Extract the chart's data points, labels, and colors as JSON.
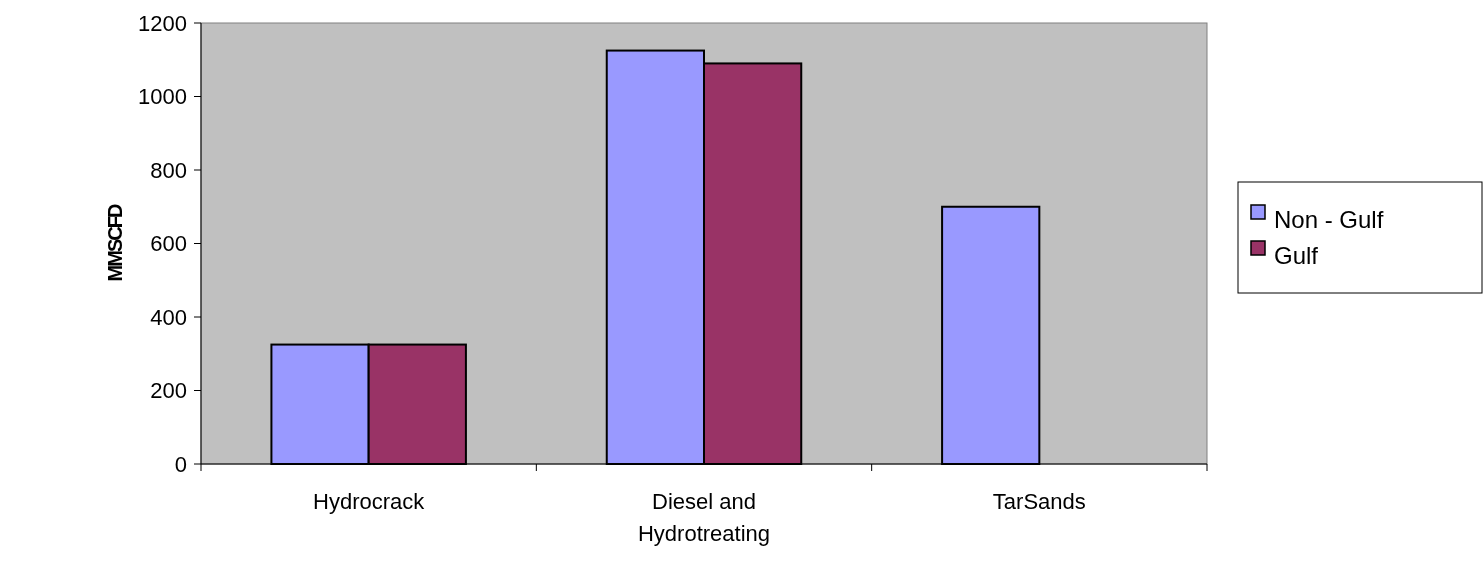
{
  "chart_data": {
    "type": "bar",
    "ylabel": "MMSCFD",
    "categories": [
      "Hydrocrack",
      "Diesel and Hydrotreating",
      "TarSands"
    ],
    "series": [
      {
        "name": "Non - Gulf",
        "color": "#9999ff",
        "values": [
          325,
          1125,
          700
        ]
      },
      {
        "name": "Gulf",
        "color": "#993366",
        "values": [
          325,
          1090,
          null
        ]
      }
    ],
    "ylim": [
      0,
      1200
    ],
    "yticks": [
      0,
      200,
      400,
      600,
      800,
      1000,
      1200
    ],
    "grid": false,
    "legend": "right"
  }
}
